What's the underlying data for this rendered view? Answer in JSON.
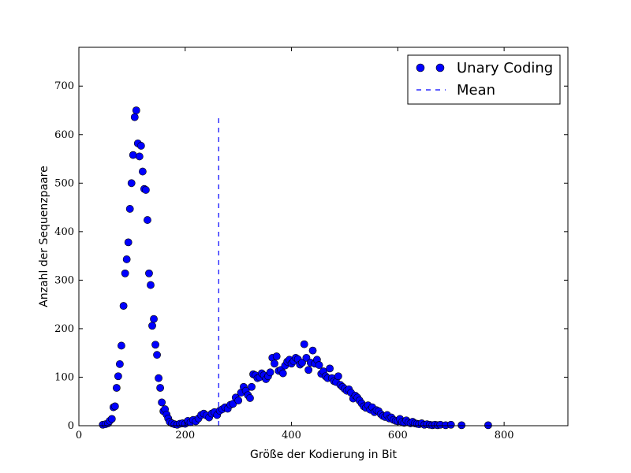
{
  "chart_data": {
    "type": "scatter",
    "title": "",
    "xlabel": "Größe der Kodierung in Bit",
    "ylabel": "Anzahl der Sequenzpaare",
    "xlim": [
      0,
      920
    ],
    "ylim": [
      0,
      780
    ],
    "xticks": [
      0,
      200,
      400,
      600,
      800
    ],
    "yticks": [
      0,
      100,
      200,
      300,
      400,
      500,
      600,
      700
    ],
    "grid": false,
    "legend_position": "top-right",
    "colors": {
      "marker": "#0000ff",
      "mean_line": "#0000ff",
      "axis": "#000000"
    },
    "series": [
      {
        "name": "Unary Coding",
        "marker": "circle",
        "points": [
          [
            45,
            2
          ],
          [
            50,
            3
          ],
          [
            55,
            5
          ],
          [
            58,
            10
          ],
          [
            62,
            14
          ],
          [
            65,
            38
          ],
          [
            68,
            40
          ],
          [
            71,
            78
          ],
          [
            74,
            102
          ],
          [
            77,
            127
          ],
          [
            80,
            165
          ],
          [
            84,
            247
          ],
          [
            87,
            314
          ],
          [
            90,
            343
          ],
          [
            93,
            378
          ],
          [
            96,
            447
          ],
          [
            99,
            500
          ],
          [
            102,
            558
          ],
          [
            105,
            636
          ],
          [
            108,
            650
          ],
          [
            111,
            582
          ],
          [
            114,
            555
          ],
          [
            117,
            577
          ],
          [
            120,
            524
          ],
          [
            123,
            488
          ],
          [
            126,
            486
          ],
          [
            129,
            424
          ],
          [
            132,
            314
          ],
          [
            135,
            290
          ],
          [
            138,
            206
          ],
          [
            141,
            220
          ],
          [
            144,
            167
          ],
          [
            147,
            146
          ],
          [
            150,
            98
          ],
          [
            153,
            78
          ],
          [
            156,
            48
          ],
          [
            159,
            30
          ],
          [
            162,
            34
          ],
          [
            165,
            23
          ],
          [
            168,
            15
          ],
          [
            171,
            8
          ],
          [
            175,
            5
          ],
          [
            180,
            3
          ],
          [
            185,
            2
          ],
          [
            190,
            4
          ],
          [
            195,
            5
          ],
          [
            200,
            4
          ],
          [
            205,
            10
          ],
          [
            210,
            7
          ],
          [
            215,
            12
          ],
          [
            220,
            9
          ],
          [
            225,
            15
          ],
          [
            230,
            22
          ],
          [
            235,
            25
          ],
          [
            240,
            21
          ],
          [
            245,
            17
          ],
          [
            250,
            25
          ],
          [
            255,
            28
          ],
          [
            260,
            22
          ],
          [
            265,
            31
          ],
          [
            270,
            34
          ],
          [
            275,
            38
          ],
          [
            280,
            35
          ],
          [
            285,
            43
          ],
          [
            290,
            45
          ],
          [
            295,
            58
          ],
          [
            300,
            52
          ],
          [
            305,
            68
          ],
          [
            310,
            80
          ],
          [
            314,
            72
          ],
          [
            318,
            63
          ],
          [
            322,
            57
          ],
          [
            325,
            80
          ],
          [
            328,
            106
          ],
          [
            332,
            104
          ],
          [
            336,
            98
          ],
          [
            340,
            100
          ],
          [
            344,
            108
          ],
          [
            348,
            104
          ],
          [
            352,
            96
          ],
          [
            356,
            102
          ],
          [
            360,
            110
          ],
          [
            364,
            140
          ],
          [
            368,
            128
          ],
          [
            372,
            143
          ],
          [
            376,
            113
          ],
          [
            380,
            115
          ],
          [
            384,
            108
          ],
          [
            388,
            124
          ],
          [
            392,
            132
          ],
          [
            396,
            136
          ],
          [
            400,
            128
          ],
          [
            404,
            133
          ],
          [
            408,
            140
          ],
          [
            412,
            137
          ],
          [
            416,
            126
          ],
          [
            420,
            130
          ],
          [
            424,
            168
          ],
          [
            428,
            140
          ],
          [
            432,
            115
          ],
          [
            436,
            130
          ],
          [
            440,
            155
          ],
          [
            444,
            128
          ],
          [
            448,
            136
          ],
          [
            452,
            125
          ],
          [
            456,
            107
          ],
          [
            460,
            112
          ],
          [
            464,
            102
          ],
          [
            468,
            98
          ],
          [
            472,
            118
          ],
          [
            476,
            98
          ],
          [
            480,
            92
          ],
          [
            484,
            90
          ],
          [
            488,
            102
          ],
          [
            492,
            84
          ],
          [
            496,
            80
          ],
          [
            500,
            76
          ],
          [
            504,
            72
          ],
          [
            508,
            75
          ],
          [
            512,
            68
          ],
          [
            516,
            56
          ],
          [
            520,
            62
          ],
          [
            524,
            58
          ],
          [
            528,
            52
          ],
          [
            532,
            46
          ],
          [
            536,
            40
          ],
          [
            540,
            37
          ],
          [
            544,
            42
          ],
          [
            548,
            33
          ],
          [
            552,
            38
          ],
          [
            556,
            28
          ],
          [
            560,
            32
          ],
          [
            564,
            30
          ],
          [
            568,
            24
          ],
          [
            572,
            20
          ],
          [
            576,
            18
          ],
          [
            580,
            22
          ],
          [
            584,
            15
          ],
          [
            588,
            17
          ],
          [
            592,
            12
          ],
          [
            596,
            10
          ],
          [
            600,
            9
          ],
          [
            604,
            14
          ],
          [
            608,
            8
          ],
          [
            612,
            6
          ],
          [
            616,
            11
          ],
          [
            620,
            7
          ],
          [
            624,
            5
          ],
          [
            628,
            8
          ],
          [
            632,
            5
          ],
          [
            636,
            4
          ],
          [
            640,
            3
          ],
          [
            645,
            5
          ],
          [
            650,
            2
          ],
          [
            655,
            3
          ],
          [
            660,
            2
          ],
          [
            665,
            1
          ],
          [
            670,
            2
          ],
          [
            675,
            1
          ],
          [
            680,
            2
          ],
          [
            690,
            1
          ],
          [
            700,
            2
          ],
          [
            720,
            1
          ],
          [
            770,
            1
          ]
        ]
      },
      {
        "name": "Mean",
        "style": "dashed-vertical-line",
        "x": 263,
        "y_range": [
          0,
          640
        ]
      }
    ]
  }
}
